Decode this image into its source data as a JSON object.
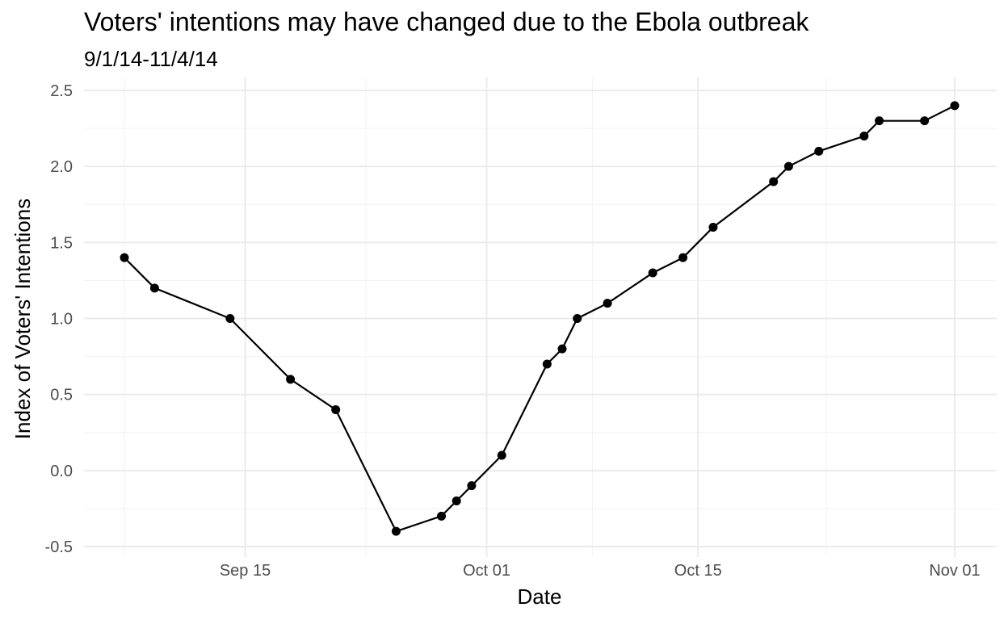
{
  "chart_data": {
    "type": "line",
    "title": "Voters' intentions may have changed due to the Ebola outbreak",
    "subtitle": "9/1/14-11/4/14",
    "xlabel": "Date",
    "ylabel": "Index of Voters' Intentions",
    "x_type": "date",
    "xlim": [
      "2014-09-04",
      "2014-11-03"
    ],
    "ylim": [
      -0.5,
      2.5
    ],
    "x_ticks": [
      {
        "date": "2014-09-15",
        "label": "Sep 15"
      },
      {
        "date": "2014-10-01",
        "label": "Oct 01"
      },
      {
        "date": "2014-10-15",
        "label": "Oct 15"
      },
      {
        "date": "2014-11-01",
        "label": "Nov 01"
      }
    ],
    "y_ticks": [
      {
        "value": 2.5,
        "label": "2.5"
      },
      {
        "value": 2.0,
        "label": "2.0"
      },
      {
        "value": 1.5,
        "label": "1.5"
      },
      {
        "value": 1.0,
        "label": "1.0"
      },
      {
        "value": 0.5,
        "label": "0.5"
      },
      {
        "value": 0.0,
        "label": "0.0"
      },
      {
        "value": -0.5,
        "label": "-0.5"
      }
    ],
    "grid": true,
    "legend": "none",
    "line_color": "#000000",
    "points": [
      {
        "x": "2014-09-07",
        "y": 1.4
      },
      {
        "x": "2014-09-09",
        "y": 1.2
      },
      {
        "x": "2014-09-14",
        "y": 1.0
      },
      {
        "x": "2014-09-18",
        "y": 0.6
      },
      {
        "x": "2014-09-21",
        "y": 0.4
      },
      {
        "x": "2014-09-25",
        "y": -0.4
      },
      {
        "x": "2014-09-28",
        "y": -0.3
      },
      {
        "x": "2014-09-29",
        "y": -0.2
      },
      {
        "x": "2014-09-30",
        "y": -0.1
      },
      {
        "x": "2014-10-02",
        "y": 0.1
      },
      {
        "x": "2014-10-05",
        "y": 0.7
      },
      {
        "x": "2014-10-06",
        "y": 0.8
      },
      {
        "x": "2014-10-07",
        "y": 1.0
      },
      {
        "x": "2014-10-09",
        "y": 1.1
      },
      {
        "x": "2014-10-12",
        "y": 1.3
      },
      {
        "x": "2014-10-14",
        "y": 1.4
      },
      {
        "x": "2014-10-16",
        "y": 1.6
      },
      {
        "x": "2014-10-20",
        "y": 1.9
      },
      {
        "x": "2014-10-21",
        "y": 2.0
      },
      {
        "x": "2014-10-23",
        "y": 2.1
      },
      {
        "x": "2014-10-26",
        "y": 2.2
      },
      {
        "x": "2014-10-27",
        "y": 2.3
      },
      {
        "x": "2014-10-30",
        "y": 2.3
      },
      {
        "x": "2014-11-01",
        "y": 2.4
      }
    ]
  }
}
